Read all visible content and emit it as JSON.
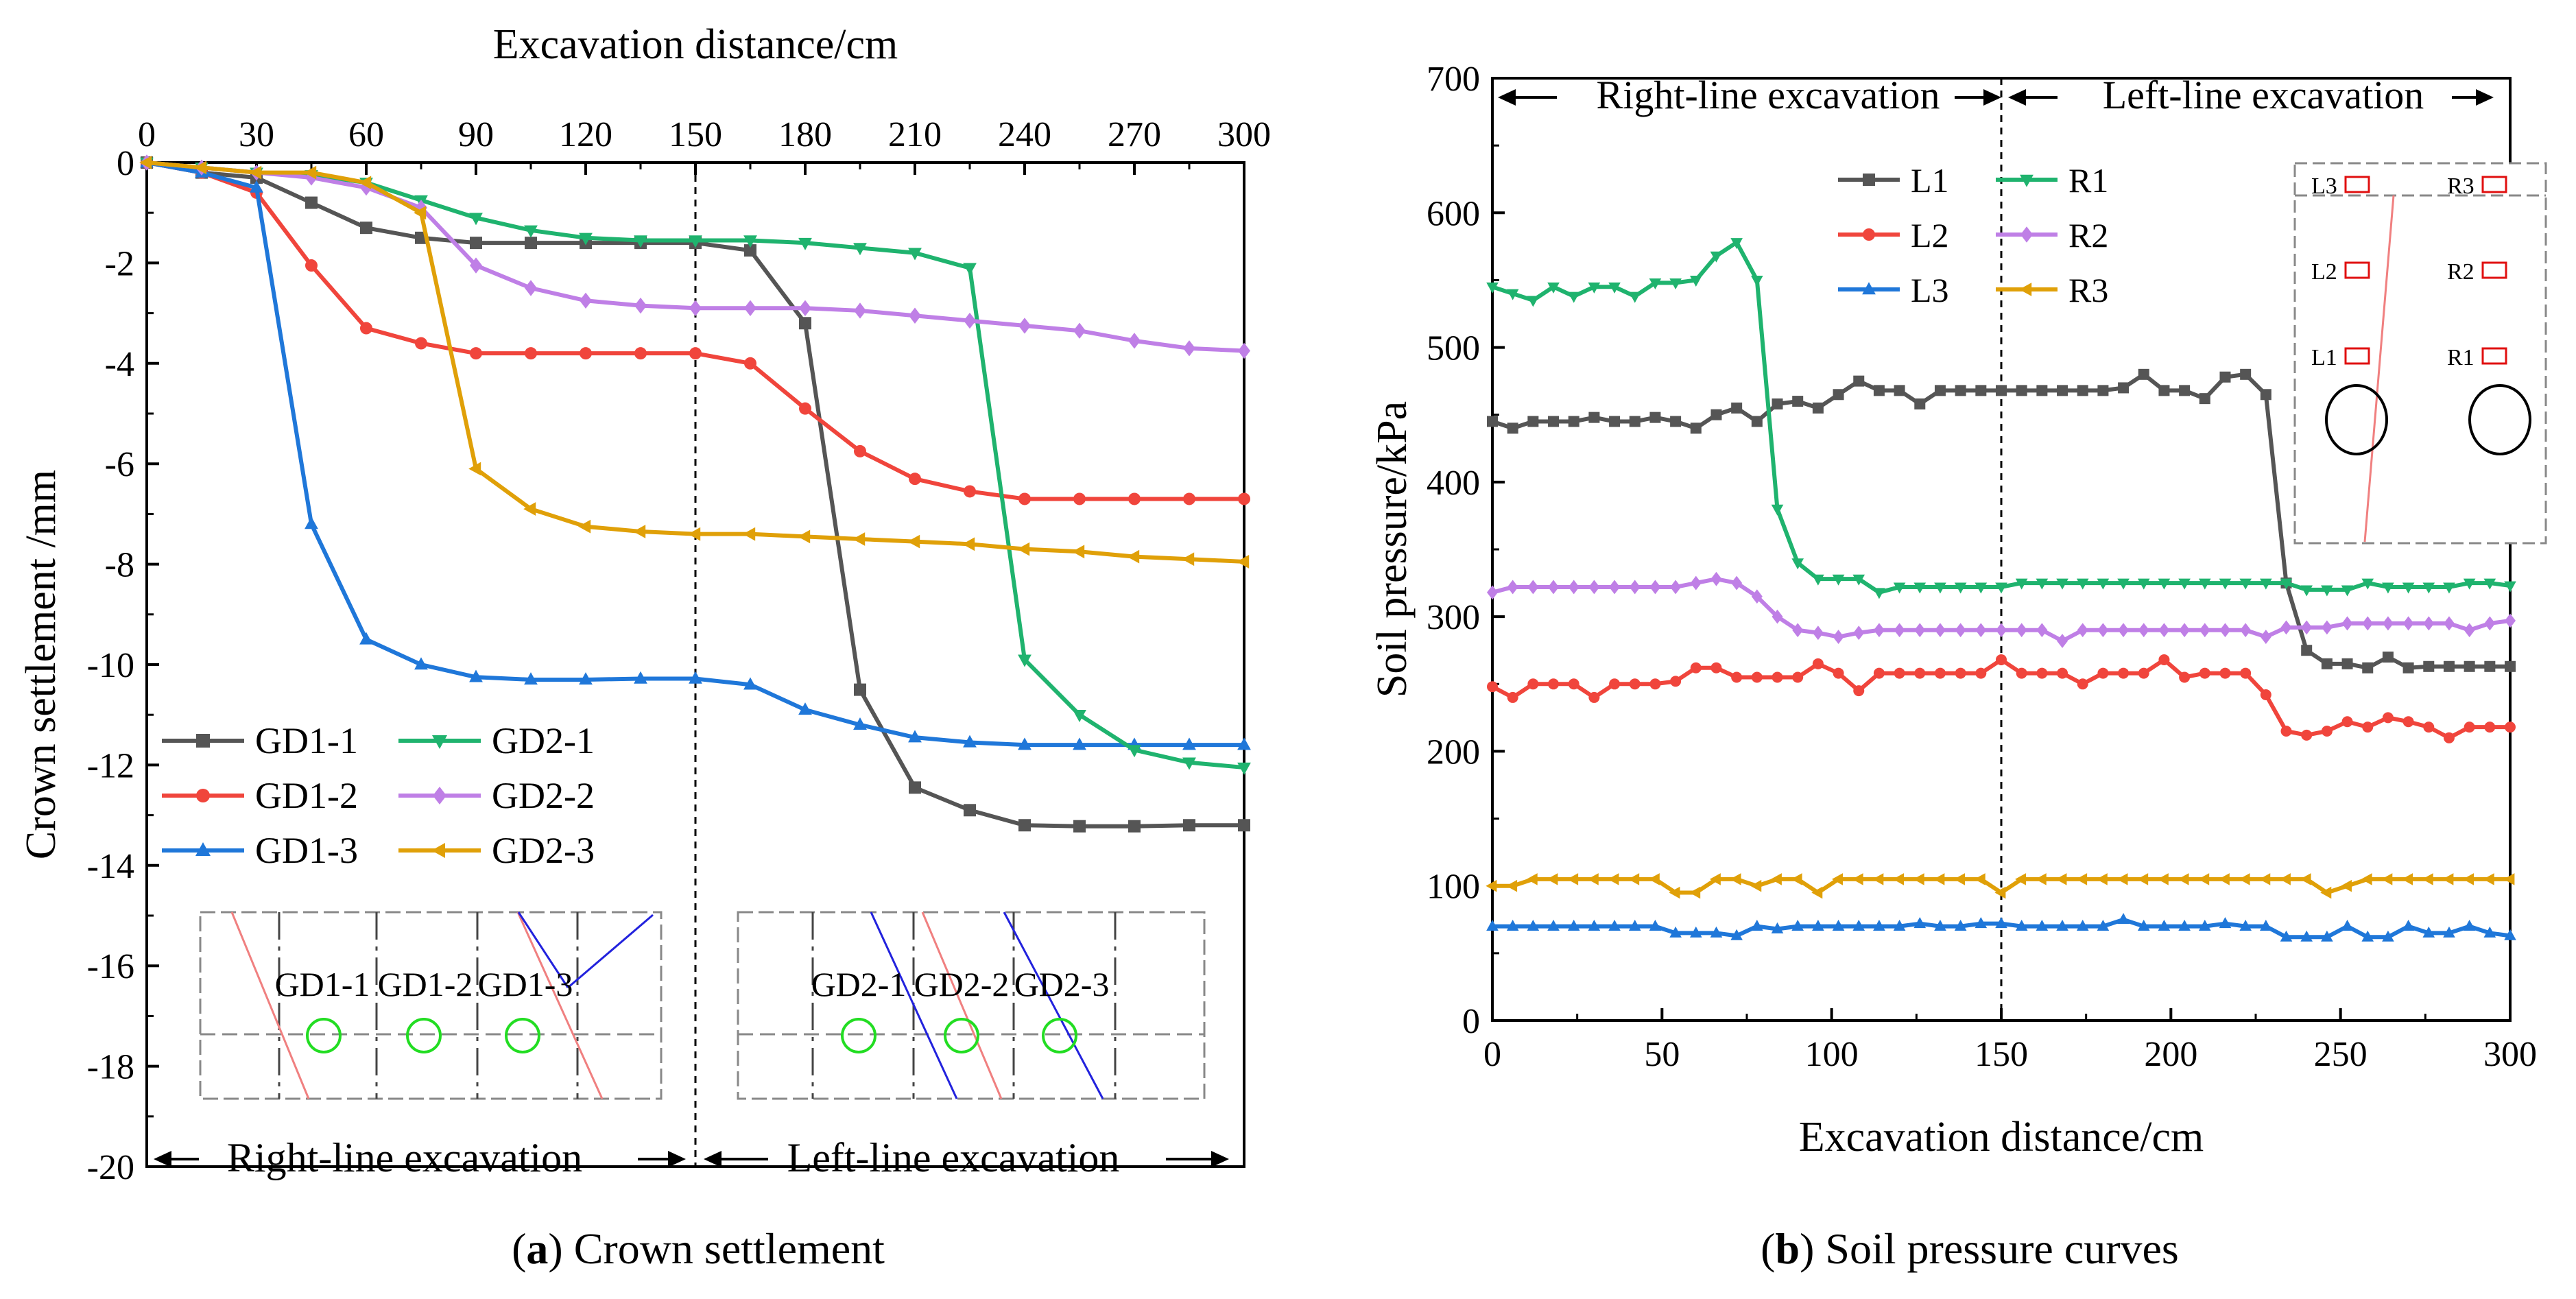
{
  "colors": {
    "gd1_1": "#555555",
    "gd1_2": "#f0453c",
    "gd1_3": "#1f77d9",
    "gd2_1": "#1fb36e",
    "gd2_2": "#bf7fe6",
    "gd2_3": "#e0a008",
    "inset_circle": "#22dd22",
    "inset_red_line": "#f08080",
    "inset_blue_line": "#2222dd",
    "gauge_box": "#e01010"
  },
  "chart_data": [
    {
      "panel": "a",
      "type": "line",
      "title": "",
      "caption_label": "a",
      "caption_text": " Crown settlement",
      "xlabel": "Excavation distance/cm",
      "ylabel": "Crown settlement /mm",
      "x_axis_position": "top",
      "xlim": [
        0,
        300
      ],
      "ylim": [
        -20,
        0
      ],
      "xticks": [
        0,
        30,
        60,
        90,
        120,
        150,
        180,
        210,
        240,
        270,
        300
      ],
      "yticks": [
        0,
        -2,
        -4,
        -6,
        -8,
        -10,
        -12,
        -14,
        -16,
        -18,
        -20
      ],
      "x": [
        0,
        15,
        30,
        45,
        60,
        75,
        90,
        105,
        120,
        135,
        150,
        165,
        180,
        195,
        210,
        225,
        240,
        255,
        270,
        285,
        300
      ],
      "divider_x": 150,
      "legend_position": "lower-left",
      "series": [
        {
          "name": "GD1-1",
          "color_key": "gd1_1",
          "marker": "square",
          "values": [
            0,
            -0.2,
            -0.3,
            -0.8,
            -1.3,
            -1.5,
            -1.6,
            -1.6,
            -1.6,
            -1.6,
            -1.6,
            -1.75,
            -3.2,
            -10.5,
            -12.45,
            -12.9,
            -13.2,
            -13.22,
            -13.22,
            -13.2,
            -13.2
          ]
        },
        {
          "name": "GD1-2",
          "color_key": "gd1_2",
          "marker": "circle",
          "values": [
            0,
            -0.2,
            -0.6,
            -2.05,
            -3.3,
            -3.6,
            -3.8,
            -3.8,
            -3.8,
            -3.8,
            -3.8,
            -4.0,
            -4.9,
            -5.75,
            -6.3,
            -6.55,
            -6.7,
            -6.7,
            -6.7,
            -6.7,
            -6.7
          ]
        },
        {
          "name": "GD1-3",
          "color_key": "gd1_3",
          "marker": "triangle-up",
          "values": [
            0,
            -0.2,
            -0.5,
            -7.2,
            -9.5,
            -10.0,
            -10.25,
            -10.3,
            -10.3,
            -10.28,
            -10.28,
            -10.4,
            -10.9,
            -11.2,
            -11.45,
            -11.55,
            -11.6,
            -11.6,
            -11.6,
            -11.6,
            -11.6
          ]
        },
        {
          "name": "GD2-1",
          "color_key": "gd2_1",
          "marker": "triangle-down",
          "values": [
            0,
            -0.1,
            -0.2,
            -0.25,
            -0.4,
            -0.75,
            -1.1,
            -1.35,
            -1.5,
            -1.55,
            -1.55,
            -1.55,
            -1.6,
            -1.7,
            -1.8,
            -2.1,
            -9.9,
            -11.0,
            -11.7,
            -11.95,
            -12.05
          ]
        },
        {
          "name": "GD2-2",
          "color_key": "gd2_2",
          "marker": "diamond",
          "values": [
            0,
            -0.1,
            -0.2,
            -0.3,
            -0.5,
            -0.9,
            -2.05,
            -2.5,
            -2.75,
            -2.85,
            -2.9,
            -2.9,
            -2.9,
            -2.95,
            -3.05,
            -3.15,
            -3.25,
            -3.35,
            -3.55,
            -3.7,
            -3.75
          ]
        },
        {
          "name": "GD2-3",
          "color_key": "gd2_3",
          "marker": "triangle-left",
          "values": [
            0,
            -0.1,
            -0.2,
            -0.2,
            -0.4,
            -1.0,
            -6.1,
            -6.9,
            -7.25,
            -7.35,
            -7.4,
            -7.4,
            -7.45,
            -7.5,
            -7.55,
            -7.6,
            -7.7,
            -7.75,
            -7.85,
            -7.9,
            -7.95
          ]
        }
      ],
      "annotations": {
        "right_line_label": "Right-line excavation",
        "left_line_label": "Left-line excavation",
        "inset_left_labels": [
          "GD1-1",
          "GD1-2",
          "GD1-3"
        ],
        "inset_right_labels": [
          "GD2-1",
          "GD2-2",
          "GD2-3"
        ]
      }
    },
    {
      "panel": "b",
      "type": "line",
      "title": "",
      "caption_label": "b",
      "caption_text": " Soil pressure curves",
      "xlabel": "Excavation distance/cm",
      "ylabel": "Soil pressure/kPa",
      "xlim": [
        0,
        300
      ],
      "ylim": [
        0,
        700
      ],
      "xticks": [
        0,
        50,
        100,
        150,
        200,
        250,
        300
      ],
      "yticks": [
        0,
        100,
        200,
        300,
        400,
        500,
        600,
        700
      ],
      "x": [
        0,
        6,
        12,
        18,
        24,
        30,
        36,
        42,
        48,
        54,
        60,
        66,
        72,
        78,
        84,
        90,
        96,
        102,
        108,
        114,
        120,
        126,
        132,
        138,
        144,
        150,
        156,
        162,
        168,
        174,
        180,
        186,
        192,
        198,
        204,
        210,
        216,
        222,
        228,
        234,
        240,
        246,
        252,
        258,
        264,
        270,
        276,
        282,
        288,
        294,
        300
      ],
      "divider_x": 150,
      "legend_position": "top-center",
      "series": [
        {
          "name": "L1",
          "color_key": "gd1_1",
          "marker": "square",
          "values": [
            445,
            440,
            445,
            445,
            445,
            448,
            445,
            445,
            448,
            445,
            440,
            450,
            455,
            445,
            458,
            460,
            455,
            465,
            475,
            468,
            468,
            458,
            468,
            468,
            468,
            468,
            468,
            468,
            468,
            468,
            468,
            470,
            480,
            468,
            468,
            462,
            478,
            480,
            465,
            325,
            275,
            265,
            265,
            262,
            270,
            262,
            263,
            263,
            263,
            263,
            263
          ]
        },
        {
          "name": "L2",
          "color_key": "gd1_2",
          "marker": "circle",
          "values": [
            248,
            240,
            250,
            250,
            250,
            240,
            250,
            250,
            250,
            252,
            262,
            262,
            255,
            255,
            255,
            255,
            265,
            258,
            245,
            258,
            258,
            258,
            258,
            258,
            258,
            268,
            258,
            258,
            258,
            250,
            258,
            258,
            258,
            268,
            255,
            258,
            258,
            258,
            242,
            215,
            212,
            215,
            222,
            218,
            225,
            222,
            218,
            210,
            218,
            218,
            218
          ]
        },
        {
          "name": "L3",
          "color_key": "gd1_3",
          "marker": "triangle-up",
          "values": [
            70,
            70,
            70,
            70,
            70,
            70,
            70,
            70,
            70,
            65,
            65,
            65,
            63,
            70,
            68,
            70,
            70,
            70,
            70,
            70,
            70,
            72,
            70,
            70,
            72,
            72,
            70,
            70,
            70,
            70,
            70,
            75,
            70,
            70,
            70,
            70,
            72,
            70,
            70,
            62,
            62,
            62,
            70,
            62,
            62,
            70,
            65,
            65,
            70,
            65,
            63
          ]
        },
        {
          "name": "R1",
          "color_key": "gd2_1",
          "marker": "triangle-down",
          "values": [
            545,
            540,
            535,
            545,
            538,
            545,
            545,
            538,
            548,
            548,
            550,
            568,
            578,
            550,
            380,
            340,
            328,
            328,
            328,
            318,
            322,
            322,
            322,
            322,
            322,
            322,
            325,
            325,
            325,
            325,
            325,
            325,
            325,
            325,
            325,
            325,
            325,
            325,
            325,
            325,
            320,
            320,
            320,
            325,
            322,
            322,
            322,
            322,
            325,
            325,
            323
          ]
        },
        {
          "name": "R2",
          "color_key": "gd2_2",
          "marker": "diamond",
          "values": [
            318,
            322,
            322,
            322,
            322,
            322,
            322,
            322,
            322,
            322,
            325,
            328,
            325,
            315,
            300,
            290,
            288,
            285,
            288,
            290,
            290,
            290,
            290,
            290,
            290,
            290,
            290,
            290,
            282,
            290,
            290,
            290,
            290,
            290,
            290,
            290,
            290,
            290,
            285,
            292,
            292,
            292,
            295,
            295,
            295,
            295,
            295,
            295,
            290,
            295,
            297
          ]
        },
        {
          "name": "R3",
          "color_key": "gd2_3",
          "marker": "triangle-left",
          "values": [
            100,
            100,
            105,
            105,
            105,
            105,
            105,
            105,
            105,
            95,
            95,
            105,
            105,
            100,
            105,
            105,
            95,
            105,
            105,
            105,
            105,
            105,
            105,
            105,
            105,
            95,
            105,
            105,
            105,
            105,
            105,
            105,
            105,
            105,
            105,
            105,
            105,
            105,
            105,
            105,
            105,
            95,
            100,
            105,
            105,
            105,
            105,
            105,
            105,
            105,
            105
          ]
        }
      ],
      "annotations": {
        "right_line_label": "Right-line excavation",
        "left_line_label": "Left-line excavation",
        "inset_labels_left": [
          "L3",
          "L2",
          "L1"
        ],
        "inset_labels_right": [
          "R3",
          "R2",
          "R1"
        ]
      }
    }
  ]
}
